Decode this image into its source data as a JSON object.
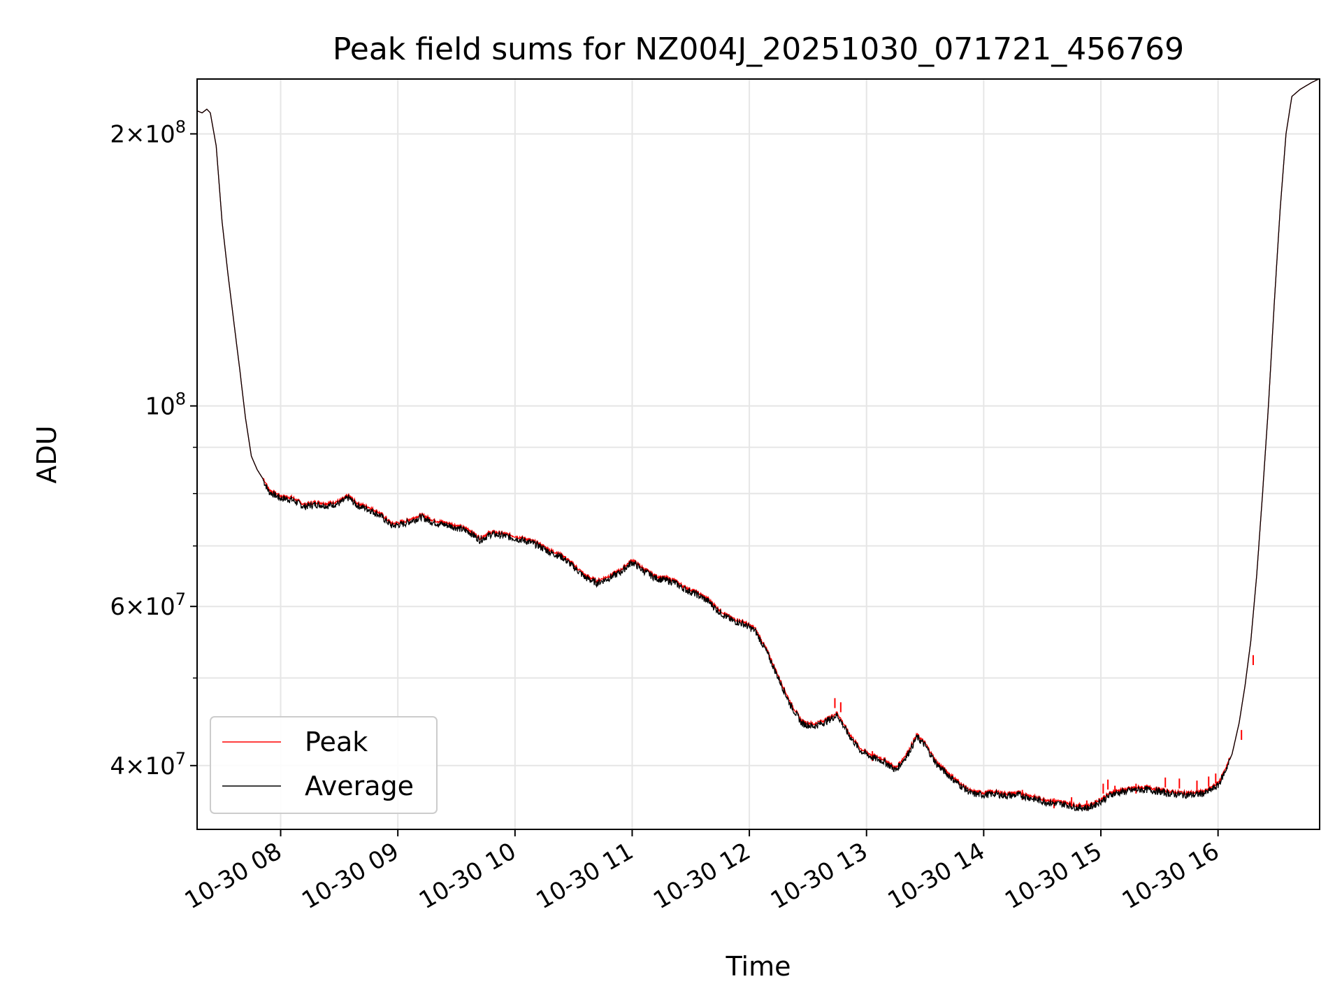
{
  "chart_data": {
    "type": "line",
    "title": "Peak field sums for NZ004J_20251030_071721_456769",
    "xlabel": "Time",
    "ylabel": "ADU",
    "yscale": "log",
    "xlim_hours": [
      7.287,
      16.867
    ],
    "ylim": [
      34000000,
      230000000
    ],
    "grid": true,
    "legend_position": "lower left",
    "x_ticks": [
      {
        "hour": 8,
        "label": "10-30 08"
      },
      {
        "hour": 9,
        "label": "10-30 09"
      },
      {
        "hour": 10,
        "label": "10-30 10"
      },
      {
        "hour": 11,
        "label": "10-30 11"
      },
      {
        "hour": 12,
        "label": "10-30 12"
      },
      {
        "hour": 13,
        "label": "10-30 13"
      },
      {
        "hour": 14,
        "label": "10-30 14"
      },
      {
        "hour": 15,
        "label": "10-30 15"
      },
      {
        "hour": 16,
        "label": "10-30 16"
      }
    ],
    "y_ticks": [
      {
        "value": 40000000,
        "base": "4×10",
        "exp": "7"
      },
      {
        "value": 60000000,
        "base": "6×10",
        "exp": "7"
      },
      {
        "value": 100000000,
        "base": "10",
        "exp": "8"
      },
      {
        "value": 200000000,
        "base": "2×10",
        "exp": "8"
      }
    ],
    "y_minor_ticks": [
      50000000,
      70000000,
      80000000,
      90000000
    ],
    "series": [
      {
        "name": "Peak",
        "color": "#ff0000"
      },
      {
        "name": "Average",
        "color": "#000000"
      }
    ],
    "average_points": [
      [
        7.29,
        212000000
      ],
      [
        7.33,
        211000000
      ],
      [
        7.37,
        213000000
      ],
      [
        7.4,
        211000000
      ],
      [
        7.45,
        194000000
      ],
      [
        7.5,
        160000000
      ],
      [
        7.55,
        140000000
      ],
      [
        7.6,
        124000000
      ],
      [
        7.65,
        110000000
      ],
      [
        7.7,
        97000000
      ],
      [
        7.75,
        88000000
      ],
      [
        7.8,
        85000000
      ],
      [
        7.85,
        83000000
      ],
      [
        7.9,
        80500000
      ],
      [
        8.0,
        79200000
      ],
      [
        8.1,
        78900000
      ],
      [
        8.2,
        77500000
      ],
      [
        8.3,
        78000000
      ],
      [
        8.4,
        77700000
      ],
      [
        8.5,
        78200000
      ],
      [
        8.58,
        79300000
      ],
      [
        8.65,
        77800000
      ],
      [
        8.75,
        77000000
      ],
      [
        8.85,
        75800000
      ],
      [
        8.95,
        73800000
      ],
      [
        9.05,
        74200000
      ],
      [
        9.2,
        75500000
      ],
      [
        9.3,
        74500000
      ],
      [
        9.45,
        73800000
      ],
      [
        9.6,
        72800000
      ],
      [
        9.7,
        71200000
      ],
      [
        9.8,
        72300000
      ],
      [
        9.9,
        72000000
      ],
      [
        10.0,
        71500000
      ],
      [
        10.1,
        71000000
      ],
      [
        10.2,
        70200000
      ],
      [
        10.3,
        69000000
      ],
      [
        10.4,
        68200000
      ],
      [
        10.5,
        66500000
      ],
      [
        10.6,
        64700000
      ],
      [
        10.7,
        63800000
      ],
      [
        10.8,
        64600000
      ],
      [
        10.9,
        65600000
      ],
      [
        11.0,
        67300000
      ],
      [
        11.1,
        65800000
      ],
      [
        11.2,
        64600000
      ],
      [
        11.35,
        64000000
      ],
      [
        11.45,
        62800000
      ],
      [
        11.55,
        62000000
      ],
      [
        11.65,
        60900000
      ],
      [
        11.75,
        59200000
      ],
      [
        11.85,
        58000000
      ],
      [
        11.95,
        57500000
      ],
      [
        12.05,
        56500000
      ],
      [
        12.15,
        53500000
      ],
      [
        12.25,
        50000000
      ],
      [
        12.35,
        46800000
      ],
      [
        12.45,
        44600000
      ],
      [
        12.55,
        44300000
      ],
      [
        12.65,
        44800000
      ],
      [
        12.75,
        45600000
      ],
      [
        12.85,
        43300000
      ],
      [
        12.95,
        41600000
      ],
      [
        13.05,
        40900000
      ],
      [
        13.15,
        40500000
      ],
      [
        13.25,
        39600000
      ],
      [
        13.35,
        41200000
      ],
      [
        13.43,
        43100000
      ],
      [
        13.5,
        42200000
      ],
      [
        13.6,
        40200000
      ],
      [
        13.7,
        39100000
      ],
      [
        13.8,
        38100000
      ],
      [
        13.9,
        37300000
      ],
      [
        14.0,
        37200000
      ],
      [
        14.1,
        37300000
      ],
      [
        14.2,
        37100000
      ],
      [
        14.3,
        37200000
      ],
      [
        14.4,
        36900000
      ],
      [
        14.5,
        36600000
      ],
      [
        14.6,
        36400000
      ],
      [
        14.7,
        36300000
      ],
      [
        14.8,
        36000000
      ],
      [
        14.9,
        36000000
      ],
      [
        15.0,
        36600000
      ],
      [
        15.1,
        37300000
      ],
      [
        15.2,
        37500000
      ],
      [
        15.3,
        37700000
      ],
      [
        15.4,
        37700000
      ],
      [
        15.5,
        37500000
      ],
      [
        15.6,
        37300000
      ],
      [
        15.7,
        37200000
      ],
      [
        15.8,
        37200000
      ],
      [
        15.9,
        37400000
      ],
      [
        16.0,
        38100000
      ],
      [
        16.05,
        39200000
      ],
      [
        16.12,
        41200000
      ],
      [
        16.18,
        44600000
      ],
      [
        16.23,
        49000000
      ],
      [
        16.28,
        55000000
      ],
      [
        16.33,
        65000000
      ],
      [
        16.38,
        80000000
      ],
      [
        16.43,
        100000000
      ],
      [
        16.48,
        130000000
      ],
      [
        16.53,
        165000000
      ],
      [
        16.58,
        200000000
      ],
      [
        16.63,
        220000000
      ],
      [
        16.7,
        224000000
      ],
      [
        16.75,
        226000000
      ],
      [
        16.8,
        228000000
      ],
      [
        16.86,
        230000000
      ]
    ],
    "peak_spikes": [
      [
        12.73,
        47500000
      ],
      [
        12.78,
        47000000
      ],
      [
        13.05,
        41500000
      ],
      [
        14.33,
        37600000
      ],
      [
        14.6,
        36800000
      ],
      [
        14.75,
        36900000
      ],
      [
        14.88,
        36600000
      ],
      [
        15.02,
        38200000
      ],
      [
        15.06,
        38600000
      ],
      [
        15.12,
        38000000
      ],
      [
        15.3,
        38200000
      ],
      [
        15.55,
        38800000
      ],
      [
        15.67,
        38700000
      ],
      [
        15.82,
        38500000
      ],
      [
        15.92,
        38900000
      ],
      [
        15.98,
        39200000
      ],
      [
        16.2,
        43800000
      ],
      [
        16.3,
        53000000
      ]
    ]
  }
}
